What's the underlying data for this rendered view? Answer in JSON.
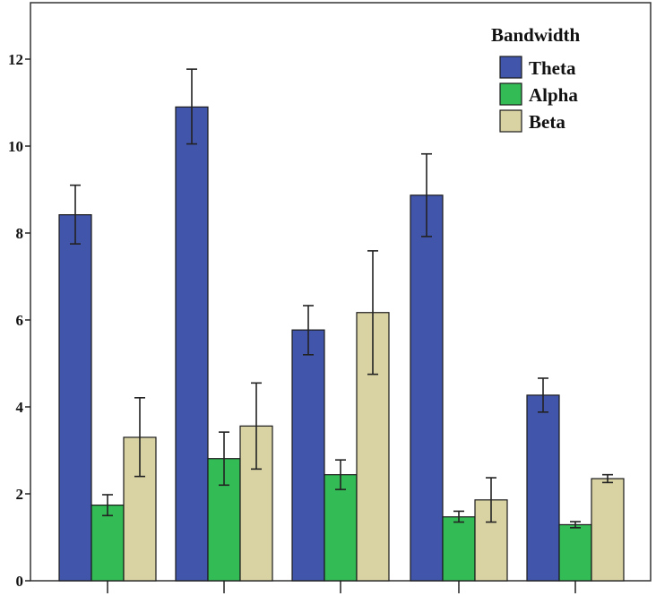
{
  "chart_data": {
    "type": "bar",
    "categories": [
      "",
      "",
      "",
      "",
      ""
    ],
    "ylim": [
      0,
      13
    ],
    "yticks": [
      "0",
      "2",
      "4",
      "6",
      "8",
      "10",
      "12"
    ],
    "grid": false,
    "error_bars": true,
    "legend": {
      "title": "Bandwidth",
      "placement": "top-right"
    },
    "series": [
      {
        "name": "Theta",
        "color": "#4155AA",
        "values": [
          8.42,
          10.9,
          5.77,
          8.87,
          4.27
        ],
        "err_low": [
          7.75,
          10.05,
          5.2,
          7.92,
          3.88
        ],
        "err_high": [
          9.1,
          11.77,
          6.33,
          9.82,
          4.66
        ]
      },
      {
        "name": "Alpha",
        "color": "#33BB55",
        "values": [
          1.74,
          2.81,
          2.44,
          1.47,
          1.29
        ],
        "err_low": [
          1.5,
          2.2,
          2.1,
          1.35,
          1.22
        ],
        "err_high": [
          1.98,
          3.42,
          2.78,
          1.6,
          1.36
        ]
      },
      {
        "name": "Beta",
        "color": "#D9D3A3",
        "values": [
          3.3,
          3.56,
          6.17,
          1.86,
          2.35
        ],
        "err_low": [
          2.4,
          2.57,
          4.75,
          1.35,
          2.26
        ],
        "err_high": [
          4.21,
          4.55,
          7.59,
          2.37,
          2.44
        ]
      }
    ]
  }
}
